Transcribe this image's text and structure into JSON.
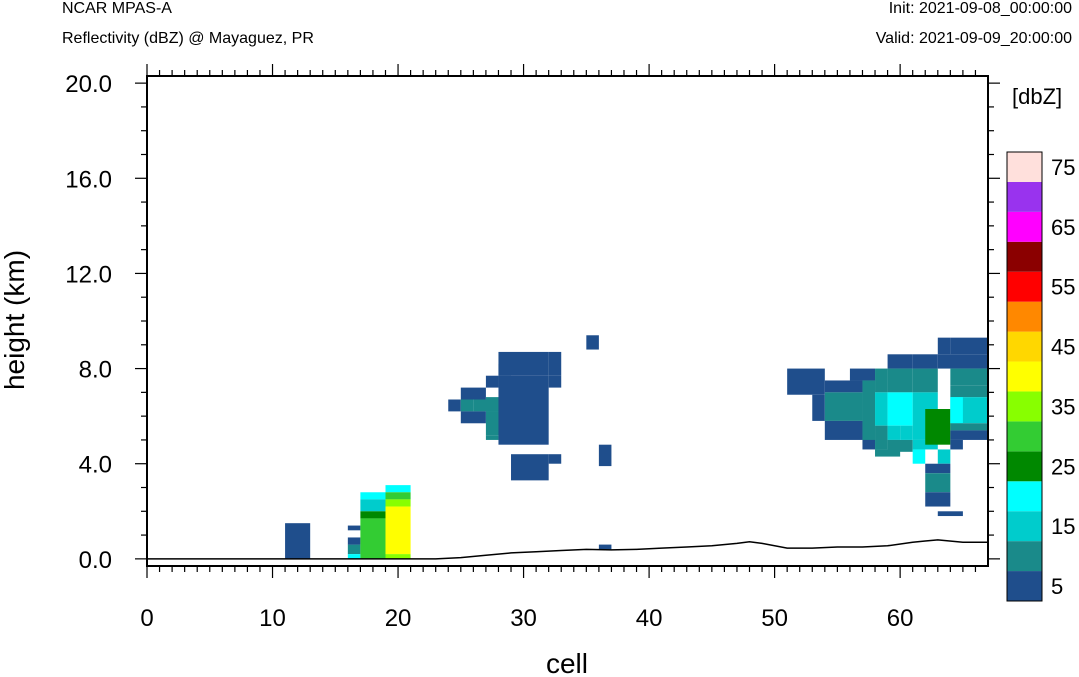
{
  "header": {
    "model": "NCAR MPAS-A",
    "field": "Reflectivity (dBZ) @ Mayaguez, PR",
    "init": "Init: 2021-09-08_00:00:00",
    "valid": "Valid: 2021-09-09_20:00:00"
  },
  "chart_data": {
    "type": "heatmap",
    "xlabel": "cell",
    "ylabel": "height (km)",
    "xlim": [
      0,
      67
    ],
    "ylim": [
      -0.3,
      20.3
    ],
    "xticks": [
      "0",
      "10",
      "20",
      "30",
      "40",
      "50",
      "60"
    ],
    "yticks": [
      "0.0",
      "4.0",
      "8.0",
      "12.0",
      "16.0",
      "20.0"
    ],
    "colorbar": {
      "title": "[dbZ]",
      "labels": [
        "5",
        "15",
        "25",
        "35",
        "45",
        "55",
        "65",
        "75"
      ],
      "colors": [
        "#1f4e8c",
        "#1a8a8a",
        "#00cccc",
        "#00ffff",
        "#008800",
        "#33cc33",
        "#88ff00",
        "#ffff00",
        "#ffd700",
        "#ff8800",
        "#ff0000",
        "#8b0000",
        "#ff00ff",
        "#9933ee",
        "#ffe0dc"
      ]
    },
    "cells": [
      [
        11,
        13,
        0.0,
        1.5,
        0
      ],
      [
        16,
        17,
        1.2,
        1.4,
        0
      ],
      [
        16,
        17,
        0.2,
        0.6,
        1
      ],
      [
        16,
        17,
        0.0,
        0.2,
        3
      ],
      [
        16,
        17,
        0.6,
        0.9,
        0
      ],
      [
        17,
        19,
        2.5,
        2.8,
        3
      ],
      [
        17,
        19,
        2.0,
        2.5,
        2
      ],
      [
        17,
        19,
        1.7,
        2.0,
        4
      ],
      [
        17,
        19,
        0.0,
        1.7,
        5
      ],
      [
        19,
        21,
        2.8,
        3.1,
        3
      ],
      [
        19,
        21,
        2.5,
        2.8,
        5
      ],
      [
        19,
        21,
        2.2,
        2.5,
        6
      ],
      [
        19,
        21,
        0.2,
        2.2,
        7
      ],
      [
        19,
        21,
        0.0,
        0.2,
        6
      ],
      [
        24,
        25,
        6.2,
        6.7,
        0
      ],
      [
        25,
        27,
        6.7,
        7.2,
        0
      ],
      [
        25,
        26,
        6.2,
        6.7,
        1
      ],
      [
        26,
        28,
        6.2,
        6.7,
        1
      ],
      [
        25,
        27,
        5.7,
        6.2,
        0
      ],
      [
        27,
        28,
        7.2,
        7.7,
        0
      ],
      [
        27,
        29,
        6.2,
        6.8,
        1
      ],
      [
        27,
        29,
        5.2,
        6.2,
        1
      ],
      [
        27,
        28,
        5.0,
        5.2,
        1
      ],
      [
        28,
        29,
        7.7,
        8.2,
        0
      ],
      [
        28,
        32,
        4.8,
        7.7,
        0
      ],
      [
        28,
        32,
        7.7,
        8.7,
        0
      ],
      [
        32,
        33,
        7.7,
        8.7,
        0
      ],
      [
        32,
        33,
        7.2,
        7.7,
        0
      ],
      [
        29,
        32,
        3.3,
        4.4,
        0
      ],
      [
        32,
        33,
        4.0,
        4.4,
        0
      ],
      [
        35,
        36,
        8.8,
        9.4,
        0
      ],
      [
        36,
        37,
        3.9,
        4.8,
        0
      ],
      [
        36,
        37,
        0.4,
        0.6,
        0
      ],
      [
        51,
        54,
        6.9,
        8.0,
        0
      ],
      [
        53,
        54,
        5.8,
        6.9,
        0
      ],
      [
        54,
        57,
        7.0,
        7.5,
        0
      ],
      [
        54,
        57,
        5.8,
        7.0,
        1
      ],
      [
        54,
        57,
        5.0,
        5.8,
        0
      ],
      [
        56,
        58,
        7.5,
        8.0,
        0
      ],
      [
        57,
        58,
        4.8,
        7.5,
        1
      ],
      [
        57,
        58,
        4.6,
        5.0,
        0
      ],
      [
        58,
        59,
        7.0,
        8.0,
        1
      ],
      [
        58,
        59,
        5.6,
        7.0,
        2
      ],
      [
        58,
        59,
        4.6,
        5.6,
        1
      ],
      [
        58,
        60,
        4.3,
        4.6,
        1
      ],
      [
        59,
        61,
        8.0,
        8.6,
        0
      ],
      [
        59,
        61,
        7.0,
        8.0,
        1
      ],
      [
        59,
        61,
        5.6,
        7.0,
        3
      ],
      [
        59,
        60,
        5.0,
        5.6,
        2
      ],
      [
        59,
        61,
        4.5,
        5.0,
        1
      ],
      [
        60,
        61,
        5.0,
        5.6,
        2
      ],
      [
        61,
        63,
        7.0,
        8.0,
        1
      ],
      [
        61,
        63,
        8.0,
        8.6,
        0
      ],
      [
        61,
        63,
        5.0,
        7.0,
        2
      ],
      [
        61,
        62,
        4.0,
        4.6,
        3
      ],
      [
        61,
        63,
        4.6,
        5.0,
        2
      ],
      [
        62,
        64,
        4.8,
        6.3,
        4
      ],
      [
        63,
        64,
        4.0,
        4.6,
        2
      ],
      [
        62,
        64,
        3.6,
        4.0,
        0
      ],
      [
        62,
        64,
        2.8,
        3.6,
        1
      ],
      [
        62,
        64,
        2.2,
        2.8,
        0
      ],
      [
        63,
        64,
        8.6,
        9.3,
        0
      ],
      [
        63,
        67,
        8.0,
        8.6,
        0
      ],
      [
        64,
        67,
        8.6,
        9.3,
        0
      ],
      [
        64,
        67,
        7.3,
        8.0,
        1
      ],
      [
        64,
        67,
        6.8,
        7.3,
        1
      ],
      [
        64,
        67,
        5.7,
        6.8,
        2
      ],
      [
        64,
        65,
        5.7,
        6.8,
        3
      ],
      [
        64,
        67,
        5.4,
        5.7,
        1
      ],
      [
        64,
        67,
        5.0,
        5.4,
        0
      ],
      [
        64,
        65,
        4.6,
        5.0,
        0
      ],
      [
        63,
        65,
        1.8,
        2.0,
        0
      ]
    ],
    "terrain_x": [
      0,
      23,
      25,
      27,
      29,
      31,
      33,
      35,
      37,
      39,
      41,
      43,
      45,
      47,
      48,
      49,
      51,
      53,
      55,
      57,
      59,
      61,
      62,
      63,
      65,
      67
    ],
    "terrain_y": [
      0.0,
      0.0,
      0.05,
      0.15,
      0.25,
      0.3,
      0.35,
      0.4,
      0.38,
      0.4,
      0.45,
      0.5,
      0.55,
      0.65,
      0.72,
      0.65,
      0.45,
      0.45,
      0.5,
      0.5,
      0.55,
      0.7,
      0.75,
      0.8,
      0.7,
      0.7
    ]
  }
}
